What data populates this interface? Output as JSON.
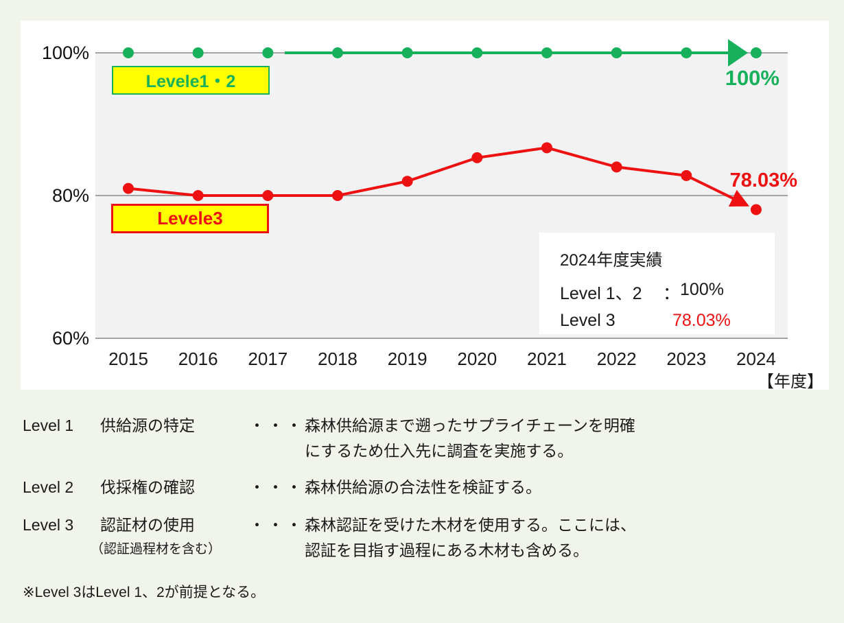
{
  "page": {
    "background": "#f1f4ea",
    "card_background": "#ffffff"
  },
  "chart": {
    "plot_background": "#f2f2f2",
    "gridline_color": "#a3a3a3",
    "y_ticks": [
      {
        "label": "100%",
        "value": 100
      },
      {
        "label": "80%",
        "value": 80
      },
      {
        "label": "60%",
        "value": 60
      }
    ],
    "x_axis_unit": "【年度】",
    "badges": [
      {
        "label": "Levele1・2",
        "color": "#17b05b",
        "background": "#ffff00"
      },
      {
        "label": "Levele3",
        "color": "#ee1111",
        "background": "#ffff00"
      }
    ],
    "end_labels": [
      {
        "text": "100%",
        "color": "#17b05b"
      },
      {
        "text": "78.03%",
        "color": "#ee1111"
      }
    ]
  },
  "chart_data": {
    "type": "line",
    "x": [
      2015,
      2016,
      2017,
      2018,
      2019,
      2020,
      2021,
      2022,
      2023,
      2024
    ],
    "series": [
      {
        "name": "Level 1・2",
        "color": "#17b05b",
        "values": [
          100,
          100,
          100,
          100,
          100,
          100,
          100,
          100,
          100,
          100
        ],
        "end_label": "100%"
      },
      {
        "name": "Level 3",
        "color": "#ee1111",
        "values": [
          81,
          80,
          80,
          80,
          82,
          85.3,
          86.7,
          84,
          82.8,
          78.03
        ],
        "end_label": "78.03%"
      }
    ],
    "ylim": [
      60,
      104
    ],
    "yticks": [
      100,
      80,
      60
    ],
    "grid": "horizontal",
    "legend_position": "on-chart-badges",
    "xlabel": "年度",
    "ylabel": "%"
  },
  "annotation": {
    "title": "2024年度実績",
    "rows": [
      {
        "label": "Level 1、2",
        "sep": "：",
        "value": "100%",
        "value_color": "#1a1a1a"
      },
      {
        "label": "Level 3",
        "sep": "",
        "value": "78.03%",
        "value_color": "#ee1111"
      }
    ]
  },
  "definitions": [
    {
      "level": "Level 1",
      "term": "供給源の特定",
      "sub_term": "",
      "dots": "・・・",
      "description_lines": [
        "森林供給源まで遡ったサプライチェーンを明確",
        "にするため仕入先に調査を実施する。"
      ]
    },
    {
      "level": "Level 2",
      "term": "伐採権の確認",
      "sub_term": "",
      "dots": "・・・",
      "description_lines": [
        "森林供給源の合法性を検証する。"
      ]
    },
    {
      "level": "Level 3",
      "term": "認証材の使用",
      "sub_term": "（認証過程材を含む）",
      "dots": "・・・",
      "description_lines": [
        "森林認証を受けた木材を使用する。ここには、",
        "認証を目指す過程にある木材も含める。"
      ]
    }
  ],
  "footnote": "※Level 3はLevel 1、2が前提となる。"
}
